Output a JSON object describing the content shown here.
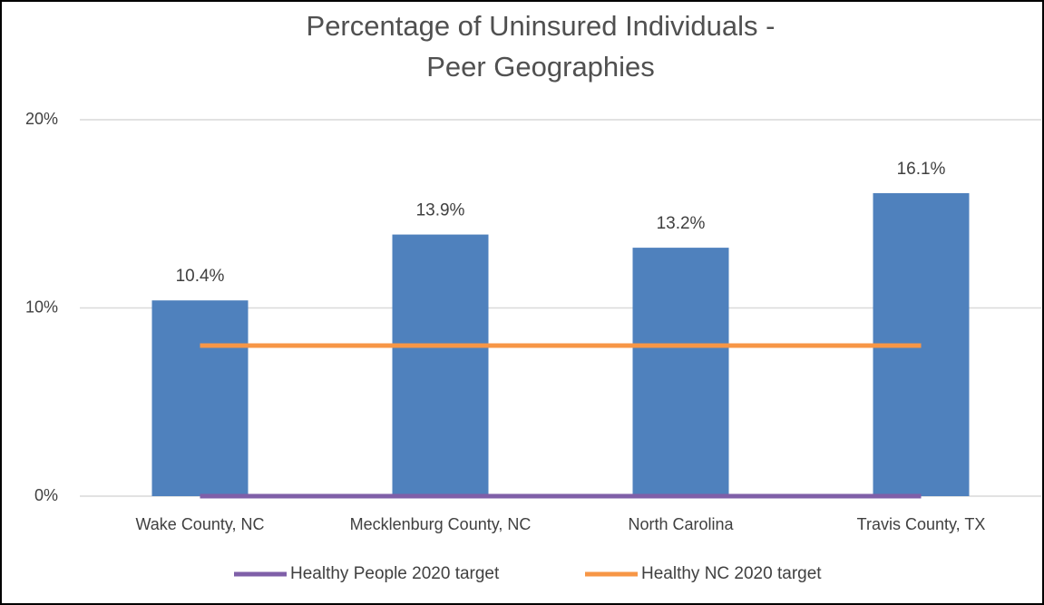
{
  "chart_data": {
    "type": "bar",
    "title": [
      "Percentage of Uninsured Individuals -",
      "Peer Geographies"
    ],
    "categories": [
      "Wake County, NC",
      "Mecklenburg County, NC",
      "North Carolina",
      "Travis County, TX"
    ],
    "values": [
      10.4,
      13.9,
      13.2,
      16.1
    ],
    "value_labels": [
      "10.4%",
      "13.9%",
      "13.2%",
      "16.1%"
    ],
    "color": "#4f81bd",
    "series": [
      {
        "name": "Healthy People 2020 target",
        "color": "#7f5fa8",
        "values": [
          0,
          0,
          0,
          0
        ]
      },
      {
        "name": "Healthy NC 2020 target",
        "color": "#f79646",
        "values": [
          8,
          8,
          8,
          8
        ]
      }
    ],
    "ylim": [
      0,
      20
    ],
    "yticks": [
      {
        "value": 0,
        "label": "0%"
      },
      {
        "value": 10,
        "label": "10%"
      },
      {
        "value": 20,
        "label": "20%"
      }
    ],
    "grid": true,
    "legend": "bottom"
  }
}
